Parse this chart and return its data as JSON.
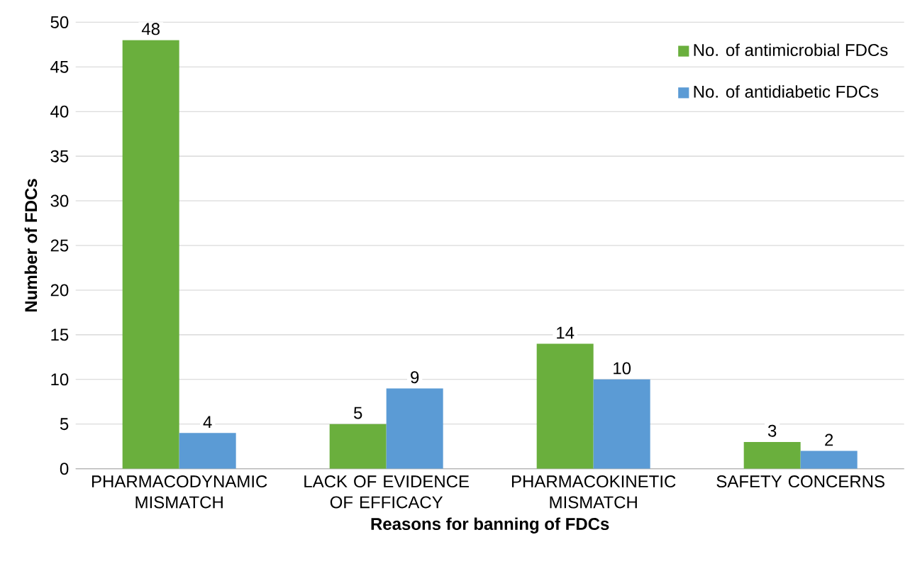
{
  "chart_data": {
    "type": "bar",
    "xlabel": "Reasons for banning of FDCs",
    "ylabel": "Number of FDCs",
    "categories": [
      "PHARMACODYNAMIC MISMATCH",
      "LACK OF EVIDENCE OF EFFICACY",
      "PHARMACOKINETIC MISMATCH",
      "SAFETY CONCERNS"
    ],
    "series": [
      {
        "name": "No. of antimicrobial FDCs",
        "color": "#6aaf3d",
        "values": [
          48,
          5,
          14,
          3
        ]
      },
      {
        "name": "No. of antidiabetic FDCs",
        "color": "#5b9bd5",
        "values": [
          4,
          9,
          10,
          2
        ]
      }
    ],
    "ylim": [
      0,
      50
    ],
    "yticks": [
      0,
      5,
      10,
      15,
      20,
      25,
      30,
      35,
      40,
      45,
      50
    ],
    "grid": "y",
    "legend": "top right",
    "data_labels": true
  }
}
